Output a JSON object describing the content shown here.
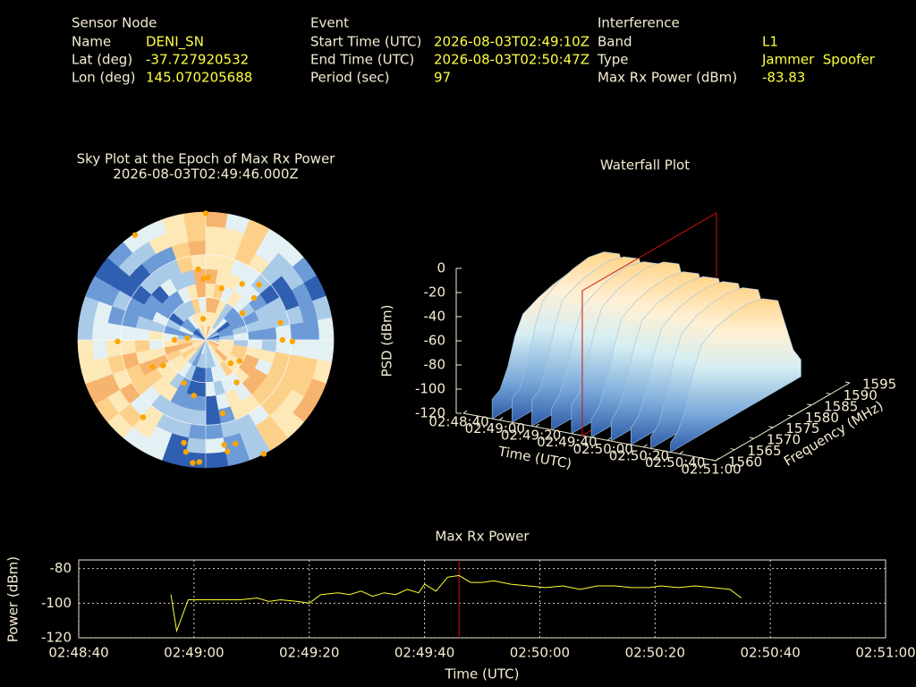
{
  "header": {
    "sensor_node": {
      "title": "Sensor Node",
      "rows": [
        [
          "Name",
          "DENI_SN"
        ],
        [
          "Lat (deg)",
          "-37.727920532"
        ],
        [
          "Lon (deg)",
          "145.070205688"
        ]
      ]
    },
    "event": {
      "title": "Event",
      "rows": [
        [
          "Start Time (UTC)",
          "2026-08-03T02:49:10Z"
        ],
        [
          "End Time (UTC)",
          "2026-08-03T02:50:47Z"
        ],
        [
          "Period (sec)",
          "97"
        ]
      ]
    },
    "interference": {
      "title": "Interference",
      "rows": [
        [
          "Band",
          "L1"
        ],
        [
          "Type",
          "Jammer  Spoofer"
        ],
        [
          "Max Rx Power (dBm)",
          "-83.83"
        ]
      ]
    }
  },
  "chart_data": [
    {
      "type": "polar-scatter",
      "title": "Sky Plot at the Epoch of Max Rx Power",
      "subtitle": "2026-08-03T02:49:46.000Z",
      "color": "#ffa500",
      "azimuth": [
        0,
        326,
        358,
        2,
        354,
        17,
        33,
        49,
        44,
        54,
        353,
        276,
        270,
        269,
        243,
        239,
        207,
        192,
        122,
        133,
        144,
        77,
        91,
        90,
        219,
        192,
        190,
        186,
        183,
        170,
        169,
        164,
        167,
        153
      ],
      "elevation": [
        1,
        1,
        47,
        46,
        40,
        52,
        43,
        45,
        36,
        58,
        75,
        77,
        68,
        28,
        48,
        55,
        56,
        50,
        62,
        66,
        53,
        36,
        29,
        36,
        20,
        16,
        10,
        3,
        4,
        15,
        10,
        14,
        37,
        0
      ]
    },
    {
      "type": "waterfall",
      "title": "Waterfall Plot",
      "xlabel": "Time (UTC)",
      "ylabel": "Frequency (MHz)",
      "zlabel": "PSD (dBm)",
      "x": [
        "02:48:56",
        "02:49:07",
        "02:49:18",
        "02:49:29",
        "02:49:40",
        "02:49:51",
        "02:50:02",
        "02:50:13",
        "02:50:24",
        "02:50:35"
      ],
      "frequencies": [
        1560,
        1562,
        1564,
        1566,
        1568,
        1572,
        1576,
        1580,
        1584,
        1588,
        1590,
        1592,
        1594
      ],
      "values": [
        [
          -104,
          -100,
          -85,
          -62,
          -48,
          -42,
          -38,
          -36,
          -38,
          -46,
          -66,
          -88,
          -102
        ],
        [
          -100,
          -96,
          -78,
          -52,
          -34,
          -26,
          -22,
          -20,
          -23,
          -32,
          -58,
          -84,
          -100
        ],
        [
          -98,
          -94,
          -74,
          -48,
          -30,
          -24,
          -21,
          -20,
          -24,
          -33,
          -60,
          -86,
          -101
        ],
        [
          -102,
          -95,
          -76,
          -50,
          -33,
          -26,
          -22,
          -21,
          -25,
          -34,
          -62,
          -88,
          -102
        ],
        [
          -96,
          -90,
          -70,
          -46,
          -30,
          -23,
          -20,
          -19,
          -22,
          -31,
          -58,
          -84,
          -99
        ],
        [
          -105,
          -98,
          -80,
          -55,
          -36,
          -28,
          -25,
          -24,
          -27,
          -36,
          -62,
          -88,
          -103
        ],
        [
          -103,
          -96,
          -78,
          -53,
          -35,
          -28,
          -26,
          -25,
          -28,
          -37,
          -64,
          -90,
          -104
        ],
        [
          -106,
          -100,
          -82,
          -56,
          -38,
          -30,
          -27,
          -26,
          -29,
          -38,
          -65,
          -90,
          -104
        ],
        [
          -110,
          -104,
          -85,
          -58,
          -40,
          -32,
          -29,
          -28,
          -31,
          -40,
          -66,
          -92,
          -105
        ],
        [
          -112,
          -106,
          -90,
          -64,
          -46,
          -38,
          -35,
          -34,
          -37,
          -46,
          -70,
          -94,
          -106
        ]
      ],
      "xlim": [
        "02:48:40",
        "02:51:00"
      ],
      "xticks": [
        "02:48:40",
        "02:49:00",
        "02:49:20",
        "02:49:40",
        "02:50:00",
        "02:50:20",
        "02:50:40",
        "02:51:00"
      ],
      "ylim": [
        1560,
        1595
      ],
      "yticks": [
        1560,
        1565,
        1570,
        1575,
        1580,
        1585,
        1590,
        1595
      ],
      "zlim": [
        -120,
        0
      ],
      "zticks": [
        0,
        -20,
        -40,
        -60,
        -80,
        -100,
        -120
      ],
      "marker_x": "02:49:46",
      "marker_color": "#cc1111"
    },
    {
      "type": "line",
      "title": "Max Rx Power",
      "xlabel": "Time (UTC)",
      "ylabel": "Power (dBm)",
      "color": "#ffff33",
      "x": [
        "02:48:56",
        "02:48:57",
        "02:48:59",
        "02:49:02",
        "02:49:05",
        "02:49:08",
        "02:49:11",
        "02:49:13",
        "02:49:15",
        "02:49:18",
        "02:49:20",
        "02:49:22",
        "02:49:25",
        "02:49:27",
        "02:49:29",
        "02:49:31",
        "02:49:33",
        "02:49:35",
        "02:49:37",
        "02:49:39",
        "02:49:40",
        "02:49:42",
        "02:49:44",
        "02:49:46",
        "02:49:48",
        "02:49:50",
        "02:49:52",
        "02:49:55",
        "02:49:58",
        "02:50:01",
        "02:50:04",
        "02:50:07",
        "02:50:10",
        "02:50:13",
        "02:50:16",
        "02:50:19",
        "02:50:21",
        "02:50:24",
        "02:50:27",
        "02:50:30",
        "02:50:33",
        "02:50:35"
      ],
      "values": [
        -95,
        -116,
        -98,
        -98,
        -98,
        -98,
        -97,
        -99,
        -98,
        -99,
        -100,
        -95,
        -94,
        -95,
        -93,
        -96,
        -94,
        -95,
        -92,
        -94,
        -89,
        -93,
        -85,
        -84,
        -88,
        -88,
        -87,
        -89,
        -90,
        -91,
        -90,
        -92,
        -90,
        -90,
        -91,
        -91,
        -90,
        -91,
        -90,
        -91,
        -92,
        -97
      ],
      "xlim": [
        "02:48:40",
        "02:51:00"
      ],
      "xticks": [
        "02:48:40",
        "02:49:00",
        "02:49:20",
        "02:49:40",
        "02:50:00",
        "02:50:20",
        "02:50:40",
        "02:51:00"
      ],
      "ylim": [
        -120,
        -75
      ],
      "yticks": [
        -80,
        -100,
        -120
      ],
      "grid": true,
      "marker_x": "02:49:46",
      "marker_color": "#cc1111"
    }
  ]
}
